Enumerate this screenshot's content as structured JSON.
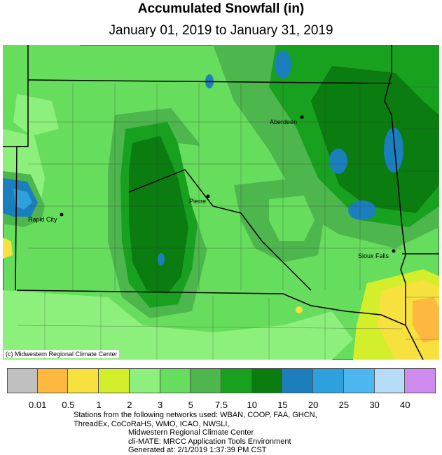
{
  "title": "Accumulated Snowfall (in)",
  "subtitle": "January 01, 2019 to January 31, 2019",
  "copyright": "(c) Midwestern Regional Climate Center",
  "cities": {
    "aberdeen": "Aberdeen",
    "pierre": "Pierre",
    "rapid_city": "Rapid City",
    "sioux_falls": "Sioux Falls"
  },
  "legend": {
    "colors": [
      "#c0c0c0",
      "#fdb83f",
      "#f6e13f",
      "#d3ef2b",
      "#8ef07c",
      "#66dd5c",
      "#4db64d",
      "#18a01f",
      "#0a7c10",
      "#1b7fbd",
      "#2fa0de",
      "#4cb6ee",
      "#b6dcf7",
      "#cf8aed"
    ],
    "ticks": [
      "0.01",
      "0.5",
      "1",
      "2",
      "3",
      "5",
      "7.5",
      "10",
      "15",
      "20",
      "25",
      "30",
      "40"
    ]
  },
  "notes": {
    "line1": "Stations from the following networks used: WBAN, COOP, FAA, GHCN,",
    "line2": "ThreadEx, CoCoRaHS, WMO, ICAO, NWSLI,",
    "line3": "Midwestern Regional Climate Center",
    "line4": "cli-MATE: MRCC Application Tools Environment",
    "line5": "Generated at: 2/1/2019 1:37:39 PM CST"
  }
}
